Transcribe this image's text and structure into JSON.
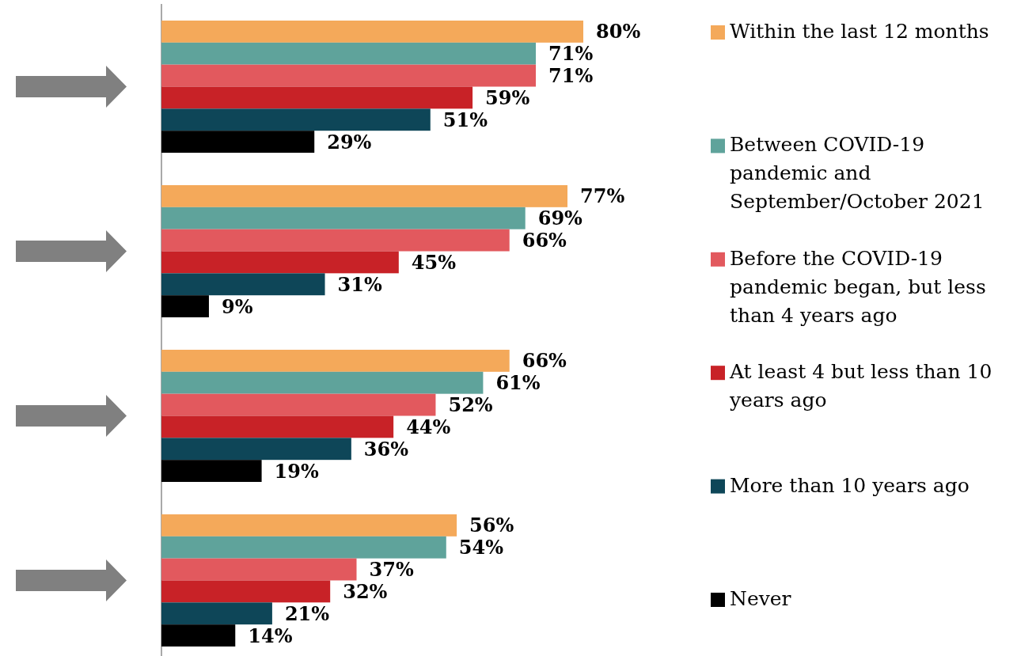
{
  "chart_data": {
    "type": "bar",
    "orientation": "horizontal",
    "categories": [
      null,
      null,
      null,
      null
    ],
    "series": [
      {
        "name": "Within the last 12 months",
        "color": "#f4a95a",
        "values": [
          80,
          77,
          66,
          56
        ],
        "value_labels": [
          "80%",
          "77%",
          "66%",
          "56%"
        ]
      },
      {
        "name": "Between COVID-19 pandemic and September/October 2021",
        "color": "#5fa39b",
        "values": [
          71,
          69,
          61,
          54
        ],
        "value_labels": [
          "71%",
          "69%",
          "61%",
          "54%"
        ]
      },
      {
        "name": "Before the COVID-19 pandemic began, but less than 4 years ago",
        "color": "#e2595e",
        "values": [
          71,
          66,
          52,
          37
        ],
        "value_labels": [
          "71%",
          "66%",
          "52%",
          "37%"
        ]
      },
      {
        "name": "At least 4 but less than 10 years ago",
        "color": "#c82227",
        "values": [
          59,
          45,
          44,
          32
        ],
        "value_labels": [
          "59%",
          "45%",
          "44%",
          "32%"
        ]
      },
      {
        "name": "More than 10 years ago",
        "color": "#0e4658",
        "values": [
          51,
          31,
          36,
          21
        ],
        "value_labels": [
          "51%",
          "31%",
          "36%",
          "21%"
        ]
      },
      {
        "name": "Never",
        "color": "#000000",
        "values": [
          29,
          9,
          19,
          14
        ],
        "value_labels": [
          "29%",
          "9%",
          "19%",
          "14%"
        ]
      }
    ],
    "legend": "right"
  }
}
